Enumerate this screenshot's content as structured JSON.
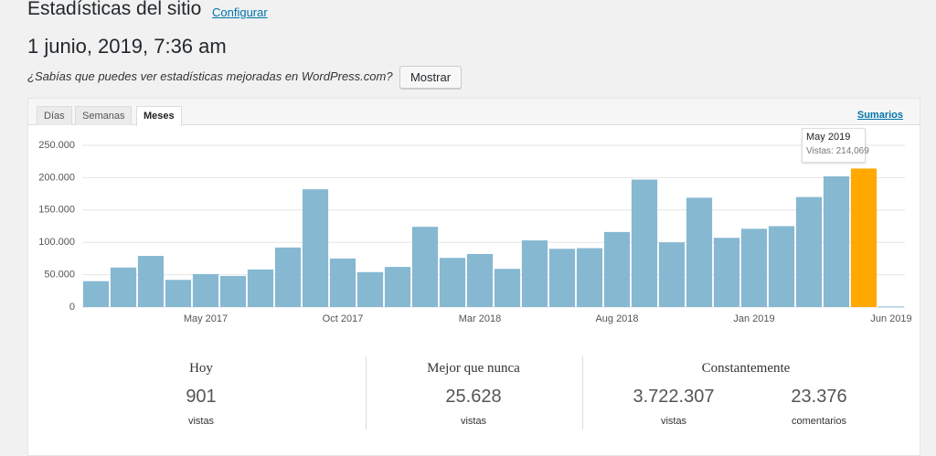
{
  "header": {
    "title": "Estadísticas del sitio",
    "configure_link": "Configurar",
    "date": "1 junio, 2019, 7:36 am",
    "notice": "¿Sabías que puedes ver estadísticas mejoradas en WordPress.com?",
    "notice_button": "Mostrar"
  },
  "tabs": [
    "Días",
    "Semanas",
    "Meses"
  ],
  "summary_link": "Sumarios",
  "chart_data": {
    "type": "bar",
    "categories": [
      null,
      null,
      null,
      null,
      "May 2017",
      null,
      null,
      null,
      null,
      "Oct 2017",
      null,
      null,
      null,
      null,
      "Mar 2018",
      null,
      null,
      null,
      null,
      "Aug 2018",
      null,
      null,
      null,
      null,
      "Jan 2019",
      null,
      null,
      null,
      null,
      "Jun 2019"
    ],
    "values": [
      40000,
      61000,
      79000,
      42000,
      51000,
      48000,
      58000,
      92000,
      182000,
      75000,
      54000,
      62000,
      124000,
      76000,
      82000,
      59000,
      103000,
      90000,
      91000,
      116000,
      197000,
      100000,
      169000,
      107000,
      121000,
      125000,
      170000,
      202000,
      214069,
      901
    ],
    "colors": [
      "#86b8d2",
      "#86b8d2",
      "#86b8d2",
      "#86b8d2",
      "#86b8d2",
      "#86b8d2",
      "#86b8d2",
      "#86b8d2",
      "#86b8d2",
      "#86b8d2",
      "#86b8d2",
      "#86b8d2",
      "#86b8d2",
      "#86b8d2",
      "#86b8d2",
      "#86b8d2",
      "#86b8d2",
      "#86b8d2",
      "#86b8d2",
      "#86b8d2",
      "#86b8d2",
      "#86b8d2",
      "#86b8d2",
      "#86b8d2",
      "#86b8d2",
      "#86b8d2",
      "#86b8d2",
      "#86b8d2",
      "#ffa800",
      "#86b8d2"
    ],
    "ylim": [
      0,
      250000
    ],
    "yticks": [
      0,
      {
        "value": 50000,
        "label": "50.000"
      },
      {
        "value": 100000,
        "label": "100.000"
      },
      {
        "value": 150000,
        "label": "150.000"
      },
      {
        "value": 200000,
        "label": "200.000"
      },
      {
        "value": 250000,
        "label": "250.000"
      }
    ],
    "grid": true,
    "tooltip": {
      "title": "May 2019",
      "text": "Vistas: 214,069"
    }
  },
  "stats": [
    {
      "title": "Hoy",
      "items": [
        {
          "value": "901",
          "label": "vistas"
        }
      ]
    },
    {
      "title": "Mejor que nunca",
      "items": [
        {
          "value": "25.628",
          "label": "vistas"
        }
      ]
    },
    {
      "title": "Constantemente",
      "items": [
        {
          "value": "3.722.307",
          "label": "vistas"
        },
        {
          "value": "23.376",
          "label": "comentarios"
        }
      ]
    }
  ]
}
